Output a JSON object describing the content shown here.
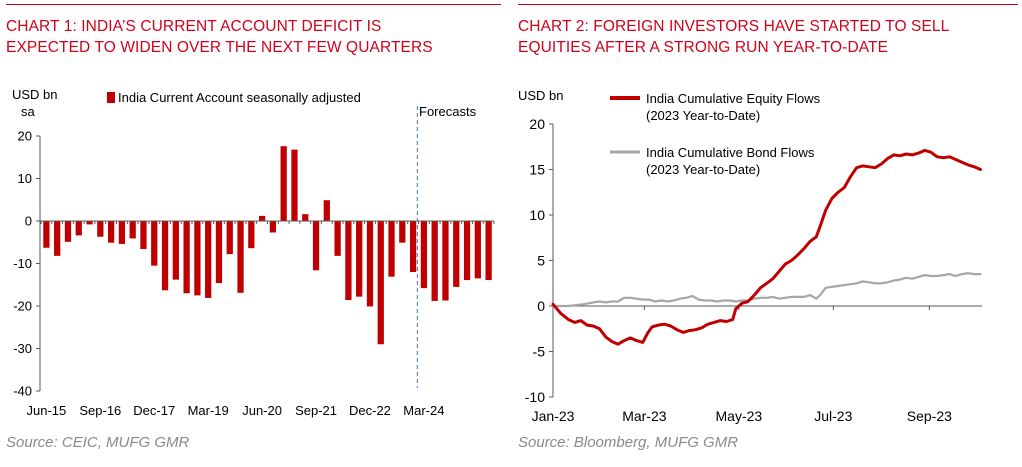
{
  "charts": [
    {
      "title_line1": "CHART 1: INDIA’S CURRENT ACCOUNT DEFICIT IS",
      "title_line2": "EXPECTED TO WIDEN OVER THE NEXT FEW QUARTERS",
      "source": "Source: CEIC, MUFG GMR"
    },
    {
      "title_line1": "CHART 2: FOREIGN INVESTORS HAVE STARTED TO SELL",
      "title_line2": "EQUITIES AFTER A STRONG RUN YEAR-TO-DATE",
      "source": "Source: Bloomberg, MUFG GMR"
    }
  ],
  "chart_data": [
    {
      "type": "bar",
      "ylabel_line1": "USD bn",
      "ylabel_line2": "sa",
      "ylim": [
        -40,
        20
      ],
      "yticks": [
        20,
        10,
        0,
        -10,
        -20,
        -30,
        -40
      ],
      "xtick_labels": [
        "Jun-15",
        "Sep-16",
        "Dec-17",
        "Mar-19",
        "Jun-20",
        "Sep-21",
        "Dec-22",
        "Mar-24"
      ],
      "xtick_indices": [
        0,
        5,
        10,
        15,
        20,
        25,
        30,
        35
      ],
      "series": [
        {
          "name": "India Current Account seasonally adjusted",
          "color": "#c00000",
          "values": [
            -6.3,
            -8.2,
            -4.9,
            -3.4,
            -0.8,
            -3.7,
            -5.1,
            -5.4,
            -4.1,
            -6.6,
            -10.5,
            -16.3,
            -13.8,
            -17.0,
            -17.5,
            -18.1,
            -14.6,
            -7.8,
            -16.9,
            -6.4,
            1.2,
            -2.7,
            17.6,
            16.8,
            1.6,
            -11.6,
            4.9,
            -8.2,
            -18.6,
            -17.8,
            -20.1,
            -29.0,
            -13.1,
            -5.1,
            -12.0,
            -15.8,
            -18.8,
            -18.7,
            -15.5,
            -13.9,
            -13.5,
            -13.9
          ]
        }
      ],
      "forecast_start_index": 35,
      "annotation": "Forecasts"
    },
    {
      "type": "line",
      "ylabel": "USD bn",
      "ylim": [
        -10,
        20
      ],
      "yticks": [
        20,
        15,
        10,
        5,
        0,
        -5,
        -10
      ],
      "xtick_labels": [
        "Jan-23",
        "Mar-23",
        "May-23",
        "Jul-23",
        "Sep-23"
      ],
      "xtick_days": [
        0,
        59,
        120,
        181,
        243
      ],
      "x_range_days": [
        0,
        277
      ],
      "series": [
        {
          "name_line1": "India Cumulative Equity Flows",
          "name_line2": "(2023 Year-to-Date)",
          "color": "#c00000",
          "points": [
            [
              0,
              0.2
            ],
            [
              5,
              -0.8
            ],
            [
              10,
              -1.5
            ],
            [
              14,
              -1.8
            ],
            [
              18,
              -1.6
            ],
            [
              22,
              -2.1
            ],
            [
              26,
              -2.2
            ],
            [
              30,
              -2.5
            ],
            [
              34,
              -3.4
            ],
            [
              38,
              -3.9
            ],
            [
              42,
              -4.2
            ],
            [
              46,
              -3.8
            ],
            [
              50,
              -3.5
            ],
            [
              54,
              -3.8
            ],
            [
              58,
              -4.0
            ],
            [
              61,
              -3.0
            ],
            [
              64,
              -2.3
            ],
            [
              68,
              -2.1
            ],
            [
              72,
              -2.0
            ],
            [
              76,
              -2.2
            ],
            [
              80,
              -2.6
            ],
            [
              84,
              -2.9
            ],
            [
              88,
              -2.7
            ],
            [
              92,
              -2.6
            ],
            [
              96,
              -2.4
            ],
            [
              100,
              -2.0
            ],
            [
              104,
              -1.8
            ],
            [
              108,
              -1.6
            ],
            [
              112,
              -1.7
            ],
            [
              116,
              -1.5
            ],
            [
              118,
              -0.3
            ],
            [
              122,
              0.3
            ],
            [
              126,
              0.5
            ],
            [
              130,
              1.2
            ],
            [
              134,
              2.0
            ],
            [
              138,
              2.5
            ],
            [
              142,
              3.0
            ],
            [
              146,
              3.8
            ],
            [
              150,
              4.6
            ],
            [
              154,
              5.0
            ],
            [
              158,
              5.6
            ],
            [
              162,
              6.3
            ],
            [
              166,
              7.1
            ],
            [
              170,
              7.6
            ],
            [
              173,
              9.0
            ],
            [
              176,
              10.5
            ],
            [
              180,
              11.8
            ],
            [
              184,
              12.5
            ],
            [
              188,
              13.0
            ],
            [
              192,
              14.2
            ],
            [
              196,
              15.2
            ],
            [
              200,
              15.4
            ],
            [
              204,
              15.3
            ],
            [
              208,
              15.2
            ],
            [
              212,
              15.6
            ],
            [
              216,
              16.2
            ],
            [
              220,
              16.6
            ],
            [
              224,
              16.5
            ],
            [
              228,
              16.7
            ],
            [
              232,
              16.6
            ],
            [
              236,
              16.8
            ],
            [
              240,
              17.1
            ],
            [
              244,
              16.9
            ],
            [
              248,
              16.4
            ],
            [
              252,
              16.3
            ],
            [
              256,
              16.4
            ],
            [
              260,
              16.1
            ],
            [
              264,
              15.8
            ],
            [
              268,
              15.5
            ],
            [
              272,
              15.3
            ],
            [
              276,
              15.0
            ]
          ]
        },
        {
          "name_line1": "India Cumulative Bond Flows",
          "name_line2": "(2023 Year-to-Date)",
          "color": "#a6a6a6",
          "points": [
            [
              0,
              0.0
            ],
            [
              10,
              0.0
            ],
            [
              20,
              0.2
            ],
            [
              26,
              0.4
            ],
            [
              30,
              0.5
            ],
            [
              34,
              0.4
            ],
            [
              38,
              0.5
            ],
            [
              42,
              0.5
            ],
            [
              46,
              0.9
            ],
            [
              50,
              0.9
            ],
            [
              54,
              0.8
            ],
            [
              58,
              0.7
            ],
            [
              62,
              0.7
            ],
            [
              66,
              0.5
            ],
            [
              70,
              0.6
            ],
            [
              74,
              0.5
            ],
            [
              78,
              0.6
            ],
            [
              82,
              0.8
            ],
            [
              86,
              0.9
            ],
            [
              90,
              1.1
            ],
            [
              94,
              0.7
            ],
            [
              98,
              0.6
            ],
            [
              102,
              0.6
            ],
            [
              106,
              0.5
            ],
            [
              110,
              0.6
            ],
            [
              114,
              0.6
            ],
            [
              118,
              0.5
            ],
            [
              122,
              0.6
            ],
            [
              126,
              0.6
            ],
            [
              130,
              0.8
            ],
            [
              134,
              0.9
            ],
            [
              138,
              0.9
            ],
            [
              142,
              1.0
            ],
            [
              146,
              0.8
            ],
            [
              150,
              0.9
            ],
            [
              154,
              1.0
            ],
            [
              158,
              1.0
            ],
            [
              162,
              1.0
            ],
            [
              166,
              1.2
            ],
            [
              170,
              0.8
            ],
            [
              173,
              1.3
            ],
            [
              176,
              2.0
            ],
            [
              180,
              2.1
            ],
            [
              184,
              2.2
            ],
            [
              188,
              2.3
            ],
            [
              192,
              2.4
            ],
            [
              196,
              2.5
            ],
            [
              200,
              2.7
            ],
            [
              204,
              2.6
            ],
            [
              208,
              2.5
            ],
            [
              212,
              2.5
            ],
            [
              216,
              2.6
            ],
            [
              220,
              2.8
            ],
            [
              224,
              2.9
            ],
            [
              228,
              3.1
            ],
            [
              232,
              3.0
            ],
            [
              236,
              3.2
            ],
            [
              240,
              3.4
            ],
            [
              244,
              3.3
            ],
            [
              248,
              3.3
            ],
            [
              252,
              3.4
            ],
            [
              256,
              3.5
            ],
            [
              260,
              3.3
            ],
            [
              264,
              3.5
            ],
            [
              268,
              3.6
            ],
            [
              272,
              3.5
            ],
            [
              276,
              3.5
            ]
          ]
        }
      ]
    }
  ]
}
